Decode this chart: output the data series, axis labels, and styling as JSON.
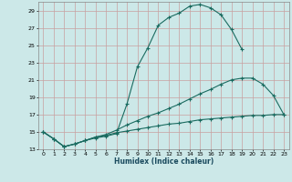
{
  "xlabel": "Humidex (Indice chaleur)",
  "bg_color": "#cce8e8",
  "grid_color": "#b0d0d0",
  "line_color": "#1a6b60",
  "xlim": [
    -0.5,
    23.5
  ],
  "ylim": [
    13,
    30
  ],
  "xticks": [
    0,
    1,
    2,
    3,
    4,
    5,
    6,
    7,
    8,
    9,
    10,
    11,
    12,
    13,
    14,
    15,
    16,
    17,
    18,
    19,
    20,
    21,
    22,
    23
  ],
  "yticks": [
    13,
    15,
    17,
    19,
    21,
    23,
    25,
    27,
    29
  ],
  "line1_x": [
    0,
    1,
    2,
    3,
    4,
    5,
    6,
    7,
    8,
    9,
    10,
    11,
    12,
    13,
    14,
    15,
    16,
    17,
    18,
    19
  ],
  "line1_y": [
    15.0,
    14.2,
    13.3,
    13.6,
    14.0,
    14.3,
    14.5,
    14.8,
    18.2,
    22.5,
    24.7,
    27.3,
    28.2,
    28.7,
    29.5,
    29.7,
    29.3,
    28.5,
    26.8,
    24.5
  ],
  "line2_x": [
    0,
    1,
    2,
    3,
    4,
    5,
    6,
    7,
    8,
    9,
    10,
    11,
    12,
    13,
    14,
    15,
    16,
    17,
    18,
    19,
    20,
    21,
    22,
    23
  ],
  "line2_y": [
    15.0,
    14.2,
    13.3,
    13.6,
    14.0,
    14.4,
    14.7,
    15.2,
    15.8,
    16.3,
    16.8,
    17.2,
    17.7,
    18.2,
    18.8,
    19.4,
    19.9,
    20.5,
    21.0,
    21.2,
    21.2,
    20.5,
    19.2,
    17.0
  ],
  "line3_x": [
    0,
    1,
    2,
    3,
    4,
    5,
    6,
    7,
    8,
    9,
    10,
    11,
    12,
    13,
    14,
    15,
    16,
    17,
    18,
    19,
    20,
    21,
    22,
    23
  ],
  "line3_y": [
    15.0,
    14.2,
    13.3,
    13.6,
    14.0,
    14.4,
    14.6,
    14.9,
    15.1,
    15.3,
    15.5,
    15.7,
    15.9,
    16.0,
    16.2,
    16.4,
    16.5,
    16.6,
    16.7,
    16.8,
    16.9,
    16.9,
    17.0,
    17.0
  ]
}
